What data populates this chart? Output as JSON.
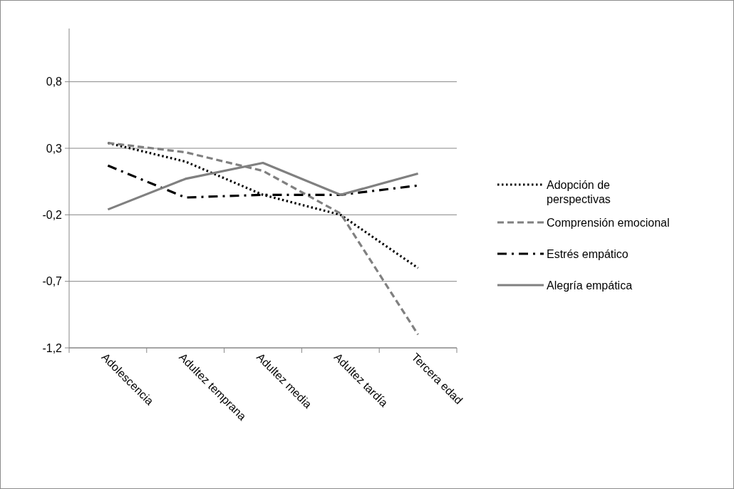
{
  "chart_data": {
    "type": "line",
    "categories": [
      "Adolescencia",
      "Adultez temprana",
      "Adultez media",
      "Adultez tardía",
      "Tercera edad"
    ],
    "series": [
      {
        "name": "Adopción de perspectivas",
        "color": "#000000",
        "line_style": "dotted",
        "values": [
          0.34,
          0.2,
          -0.05,
          -0.2,
          -0.6
        ]
      },
      {
        "name": "Comprensión emocional",
        "color": "#808080",
        "line_style": "dashed",
        "values": [
          0.34,
          0.27,
          0.13,
          -0.19,
          -1.1
        ]
      },
      {
        "name": "Estrés empático",
        "color": "#000000",
        "line_style": "dashdot",
        "values": [
          0.17,
          -0.07,
          -0.05,
          -0.05,
          0.02
        ]
      },
      {
        "name": "Alegría empática",
        "color": "#808080",
        "line_style": "solid",
        "values": [
          -0.16,
          0.07,
          0.19,
          -0.05,
          0.11
        ]
      }
    ],
    "ylim": [
      -1.2,
      1.2
    ],
    "yticks": [
      {
        "value": -1.2,
        "label": "-1,2"
      },
      {
        "value": -0.7,
        "label": "-0,7"
      },
      {
        "value": -0.2,
        "label": "-0,2"
      },
      {
        "value": 0.3,
        "label": "0,3"
      },
      {
        "value": 0.8,
        "label": "0,8"
      }
    ],
    "grid": "y",
    "legend": "right"
  }
}
